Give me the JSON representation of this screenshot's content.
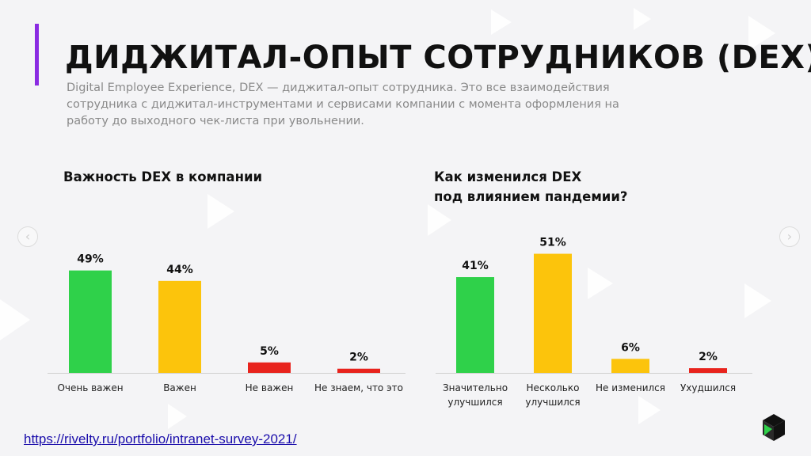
{
  "header": {
    "title": "ДИДЖИТАЛ-ОПЫТ СОТРУДНИКОВ (DEX)",
    "description": "Digital Employee Experience, DEX — диджитал-опыт сотрудника. Это все взаимодействия сотрудника с диджитал-инструментами и сервисами компании с момента оформления на работу до выходного чек-листа при увольнении."
  },
  "footer": {
    "source_link": "https://rivelty.ru/portfolio/intranet-survey-2021/"
  },
  "colors": {
    "accent": "#8a2be2",
    "green": "#2fd14a",
    "yellow": "#fcc40c",
    "red": "#e8231d"
  },
  "icons": {
    "prev": "chevron-left-icon",
    "next": "chevron-right-icon",
    "logo": "cube-logo-icon"
  },
  "chart_data": [
    {
      "type": "bar",
      "title_lines": [
        "Важность DEX в компании"
      ],
      "categories": [
        [
          "Очень важен"
        ],
        [
          "Важен"
        ],
        [
          "Не важен"
        ],
        [
          "Не знаем, что это"
        ]
      ],
      "values": [
        49,
        44,
        5,
        2
      ],
      "value_labels": [
        "49%",
        "44%",
        "5%",
        "2%"
      ],
      "bar_colors": [
        "#2fd14a",
        "#fcc40c",
        "#e8231d",
        "#e8231d"
      ],
      "ylim": [
        0,
        100
      ],
      "grid": false
    },
    {
      "type": "bar",
      "title_lines": [
        "Как изменился DEX",
        "под влиянием пандемии?"
      ],
      "categories": [
        [
          "Значительно",
          "улучшился"
        ],
        [
          "Несколько",
          "улучшился"
        ],
        [
          "Не изменился"
        ],
        [
          "Ухудшился"
        ]
      ],
      "values": [
        41,
        51,
        6,
        2
      ],
      "value_labels": [
        "41%",
        "51%",
        "6%",
        "2%"
      ],
      "bar_colors": [
        "#2fd14a",
        "#fcc40c",
        "#fcc40c",
        "#e8231d"
      ],
      "ylim": [
        0,
        100
      ],
      "grid": false
    }
  ]
}
